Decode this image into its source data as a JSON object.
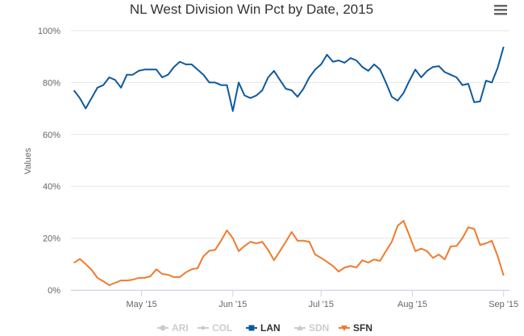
{
  "chart_data": {
    "type": "line",
    "title": "NL West Division Win Pct by Date, 2015",
    "xlabel": "",
    "ylabel": "Values",
    "ylim": [
      0,
      100
    ],
    "yticks": [
      "0%",
      "20%",
      "40%",
      "60%",
      "80%",
      "100%"
    ],
    "ytick_values": [
      0,
      20,
      40,
      60,
      80,
      100
    ],
    "xlim": [
      "2015-04-07",
      "2015-09-03"
    ],
    "xticks": [
      {
        "label": "May '15",
        "date": "2015-05-01"
      },
      {
        "label": "Jun '15",
        "date": "2015-06-01"
      },
      {
        "label": "Jul '15",
        "date": "2015-07-01"
      },
      {
        "label": "Aug '15",
        "date": "2015-08-01"
      },
      {
        "label": "Sep '15",
        "date": "2015-09-01"
      }
    ],
    "grid": true,
    "legend_position": "bottom-center",
    "x_start": "2015-04-08",
    "x_step_days": 2,
    "series": [
      {
        "name": "ARI",
        "visible": false,
        "color": "#cccccc",
        "values": []
      },
      {
        "name": "COL",
        "visible": false,
        "color": "#cccccc",
        "values": []
      },
      {
        "name": "LAN",
        "visible": true,
        "color": "#0e5a9c",
        "values": [
          77,
          74,
          70,
          74,
          78,
          79,
          82,
          81,
          78,
          83,
          83,
          84.5,
          85,
          85,
          85,
          82,
          83,
          86,
          88,
          87,
          87,
          85,
          83,
          80,
          80,
          79,
          79,
          69,
          80,
          75,
          74,
          75,
          77,
          82,
          84.5,
          81,
          77.6,
          77,
          74.5,
          77.6,
          82,
          85,
          87,
          90.7,
          88,
          88.5,
          87.6,
          89.4,
          88.5,
          86,
          84.5,
          87,
          85,
          80,
          74.5,
          73,
          76,
          80.7,
          85,
          82,
          84.5,
          86,
          86.3,
          84,
          83,
          82,
          79,
          79.5,
          72.4,
          72.7,
          80.7,
          80,
          85.7,
          93.8
        ]
      },
      {
        "name": "SDN",
        "visible": false,
        "color": "#cccccc",
        "values": []
      },
      {
        "name": "SFN",
        "visible": true,
        "color": "#f07b2f",
        "values": [
          10.5,
          12,
          10,
          7.8,
          4.7,
          3.4,
          1.9,
          2.8,
          3.7,
          3.7,
          4,
          4.7,
          4.7,
          5.3,
          8,
          6.2,
          5.9,
          5,
          5,
          6.8,
          8,
          8.4,
          13,
          15.2,
          15.5,
          19,
          23,
          20,
          15,
          17,
          18.6,
          18,
          18.6,
          15.5,
          11.5,
          15,
          18.6,
          22.4,
          19,
          19,
          18.6,
          13.7,
          12.4,
          10.9,
          9.3,
          7.1,
          8.7,
          9.3,
          8.7,
          11.5,
          10.6,
          11.8,
          11.2,
          15,
          18.6,
          24.8,
          26.7,
          21,
          15,
          16,
          15,
          12.4,
          13.7,
          11.8,
          16.8,
          17,
          20,
          24.2,
          23.6,
          17.4,
          18,
          19,
          13,
          5.6
        ]
      }
    ]
  },
  "menu_icon": "hamburger-menu-icon"
}
